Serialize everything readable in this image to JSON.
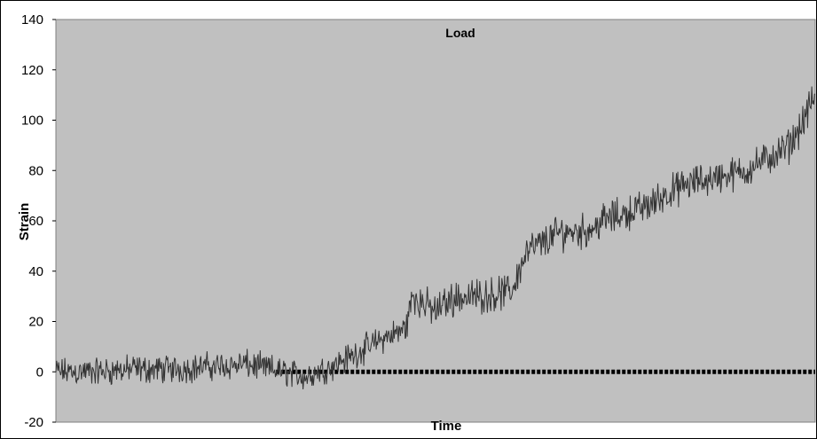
{
  "chart_data": {
    "type": "line",
    "title": "Load",
    "xlabel": "Time",
    "ylabel": "Strain",
    "ylim": [
      -20,
      140
    ],
    "yticks": [
      "140",
      "120",
      "100",
      "80",
      "60",
      "40",
      "20",
      "0",
      "-20"
    ],
    "grid": false,
    "legend": "none",
    "colors": {
      "plot_area": "#c0c0c0",
      "series": "#333333",
      "baseline": "#000000"
    },
    "series": [
      {
        "style": "noisy line",
        "x": [
          0,
          5,
          10,
          15,
          20,
          25,
          30,
          33,
          36,
          40,
          43,
          46,
          47,
          48,
          50,
          52,
          55,
          58,
          60,
          62,
          64,
          65,
          66,
          68,
          70,
          72,
          75,
          78,
          80,
          82,
          85,
          88,
          90,
          92,
          94,
          96,
          97,
          98,
          99,
          100
        ],
        "y": [
          0,
          0,
          1,
          1,
          2,
          3,
          0,
          -2,
          2,
          8,
          13,
          17,
          30,
          28,
          24,
          29,
          30,
          31,
          32,
          48,
          51,
          53,
          55,
          56,
          56,
          60,
          63,
          66,
          70,
          73,
          76,
          78,
          79,
          82,
          85,
          88,
          92,
          97,
          103,
          110
        ]
      },
      {
        "style": "dotted baseline",
        "x": [
          29,
          100
        ],
        "y": [
          0,
          0
        ]
      }
    ]
  }
}
